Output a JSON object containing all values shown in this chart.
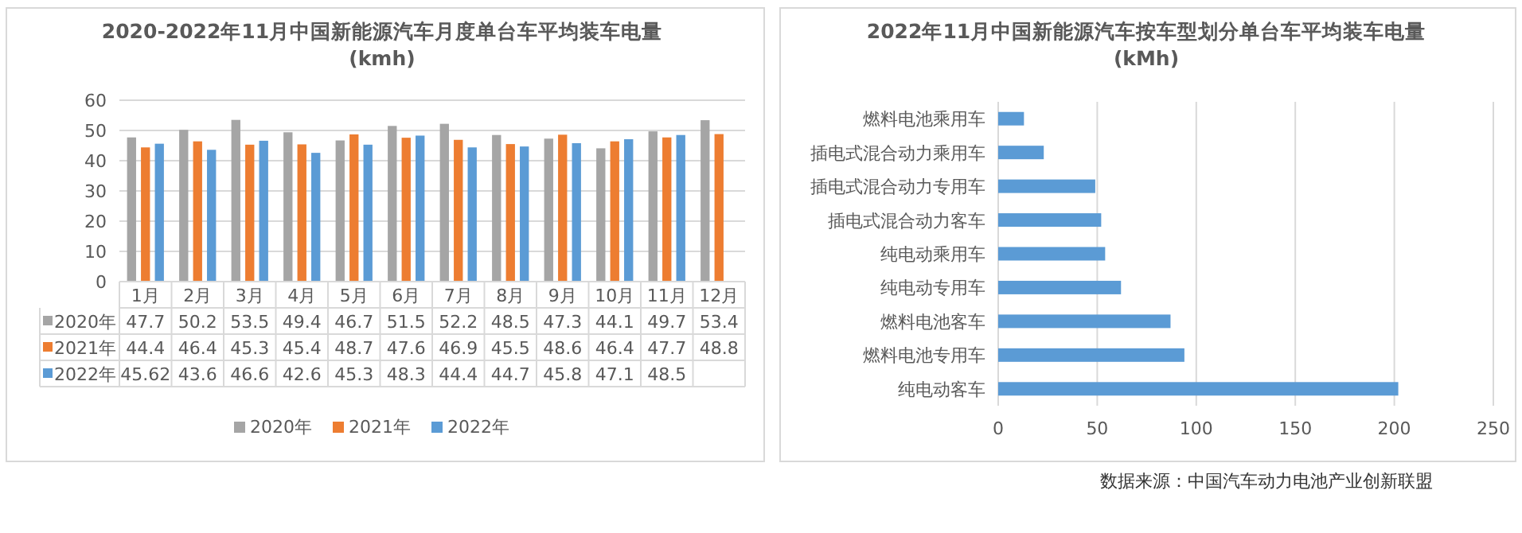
{
  "chart_data": [
    {
      "type": "bar",
      "title": "2020-2022年11月中国新能源汽车月度单台车平均装车电量",
      "subtitle": "(kmh)",
      "categories": [
        "1月",
        "2月",
        "3月",
        "4月",
        "5月",
        "6月",
        "7月",
        "8月",
        "9月",
        "10月",
        "11月",
        "12月"
      ],
      "series": [
        {
          "name": "2020年",
          "color": "#a5a5a5",
          "values": [
            47.7,
            50.2,
            53.5,
            49.4,
            46.7,
            51.5,
            52.2,
            48.5,
            47.3,
            44.1,
            49.7,
            53.4
          ]
        },
        {
          "name": "2021年",
          "color": "#ed7d31",
          "values": [
            44.4,
            46.4,
            45.3,
            45.4,
            48.7,
            47.6,
            46.9,
            45.5,
            48.6,
            46.4,
            47.7,
            48.8
          ]
        },
        {
          "name": "2022年",
          "color": "#5b9bd5",
          "values": [
            45.62,
            43.6,
            46.6,
            42.6,
            45.3,
            48.3,
            44.4,
            44.7,
            45.8,
            47.1,
            48.5,
            null
          ]
        }
      ],
      "ylim": [
        0,
        60
      ],
      "yticks": [
        0,
        10,
        20,
        30,
        40,
        50,
        60
      ],
      "grid": "y",
      "legend": "bottom",
      "data_labels": true
    },
    {
      "type": "bar",
      "orientation": "horizontal",
      "title": "2022年11月中国新能源汽车按车型划分单台车平均装车电量",
      "subtitle": "(kMh)",
      "categories": [
        "燃料电池乘用车",
        "插电式混合动力乘用车",
        "插电式混合动力专用车",
        "插电式混合动力客车",
        "纯电动乘用车",
        "纯电动专用车",
        "燃料电池客车",
        "燃料电池专用车",
        "纯电动客车"
      ],
      "values": [
        13,
        23,
        49,
        52,
        54,
        62,
        87,
        94,
        202
      ],
      "color": "#5b9bd5",
      "xlim": [
        0,
        250
      ],
      "xticks": [
        0,
        50,
        100,
        150,
        200,
        250
      ],
      "grid": "x",
      "annotations": [
        "数据来源：中国汽车动力电池产业创新联盟"
      ]
    }
  ]
}
